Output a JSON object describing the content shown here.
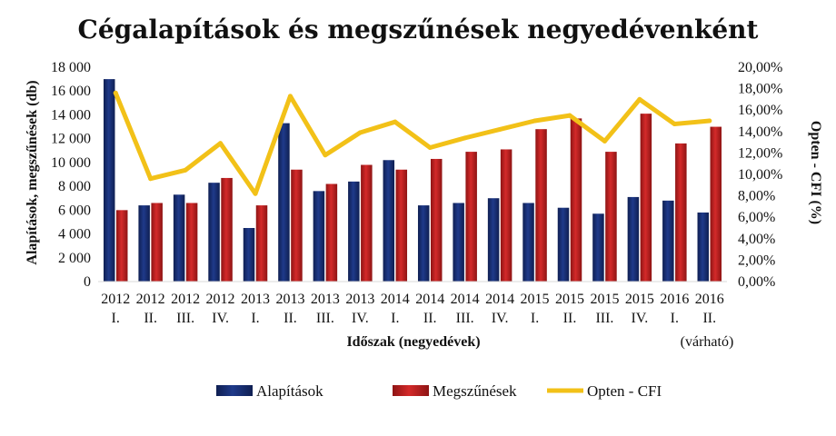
{
  "chart_data": {
    "type": "bar",
    "title": "Cégalapítások és megszűnések negyedévenként",
    "xlabel": "Időszak (negyedévek)",
    "ylabel": "Alapítások, megszűnések (db)",
    "y2label": "Opten - CFI (%)",
    "ylim": [
      0,
      18000
    ],
    "y2lim": [
      0,
      20
    ],
    "y_ticks": [
      "0",
      "2 000",
      "4 000",
      "6 000",
      "8 000",
      "10 000",
      "12 000",
      "14 000",
      "16 000",
      "18 000"
    ],
    "y2_ticks": [
      "0,00%",
      "2,00%",
      "4,00%",
      "6,00%",
      "8,00%",
      "10,00%",
      "12,00%",
      "14,00%",
      "16,00%",
      "18,00%",
      "20,00%"
    ],
    "categories": [
      {
        "year": "2012",
        "quarter": "I."
      },
      {
        "year": "2012",
        "quarter": "II."
      },
      {
        "year": "2012",
        "quarter": "III."
      },
      {
        "year": "2012",
        "quarter": "IV."
      },
      {
        "year": "2013",
        "quarter": "I."
      },
      {
        "year": "2013",
        "quarter": "II."
      },
      {
        "year": "2013",
        "quarter": "III."
      },
      {
        "year": "2013",
        "quarter": "IV."
      },
      {
        "year": "2014",
        "quarter": "I."
      },
      {
        "year": "2014",
        "quarter": "II."
      },
      {
        "year": "2014",
        "quarter": "III."
      },
      {
        "year": "2014",
        "quarter": "IV."
      },
      {
        "year": "2015",
        "quarter": "I."
      },
      {
        "year": "2015",
        "quarter": "II."
      },
      {
        "year": "2015",
        "quarter": "III."
      },
      {
        "year": "2015",
        "quarter": "IV."
      },
      {
        "year": "2016",
        "quarter": "I."
      },
      {
        "year": "2016",
        "quarter": "II."
      }
    ],
    "last_category_note": "(várható)",
    "series": [
      {
        "name": "Alapítások",
        "axis": "left",
        "kind": "bar",
        "color": "#1f3a8a",
        "values": [
          17000,
          6400,
          7300,
          8300,
          4500,
          13300,
          7600,
          8400,
          10200,
          6400,
          6600,
          7000,
          6600,
          6200,
          5700,
          7100,
          6800,
          5800
        ]
      },
      {
        "name": "Megszűnések",
        "axis": "left",
        "kind": "bar",
        "color": "#d42a2a",
        "values": [
          6000,
          6600,
          6600,
          8700,
          6400,
          9400,
          8200,
          9800,
          9400,
          10300,
          10900,
          11100,
          12800,
          13700,
          10900,
          14100,
          11600,
          13000
        ]
      },
      {
        "name": "Opten - CFI",
        "axis": "right",
        "kind": "line",
        "color": "#f2c118",
        "values": [
          17.6,
          9.6,
          10.4,
          12.9,
          8.2,
          17.3,
          11.8,
          13.9,
          14.9,
          12.5,
          13.4,
          14.2,
          15.0,
          15.5,
          13.1,
          17.0,
          14.7,
          15.0
        ]
      }
    ],
    "legend_position": "bottom"
  }
}
